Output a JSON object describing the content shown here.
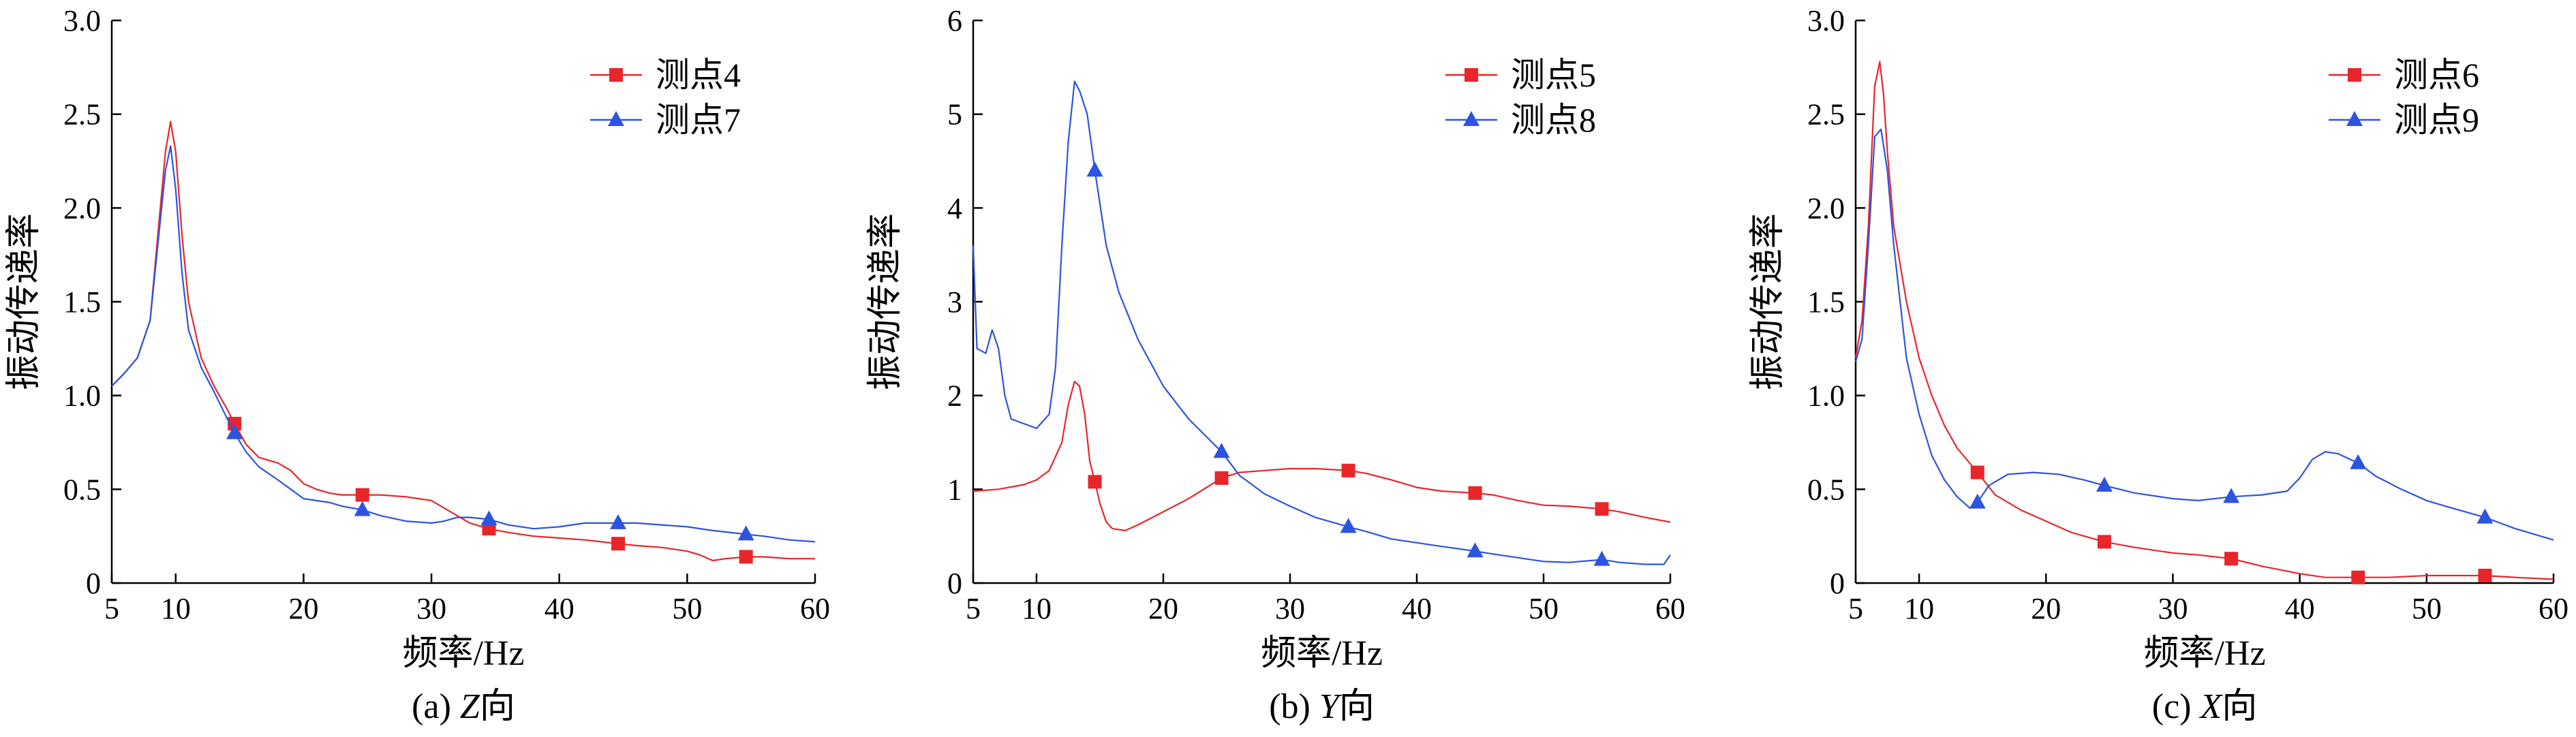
{
  "chart_data": [
    {
      "type": "line",
      "caption": "(a) Z向",
      "caption_prefix": "(a) ",
      "caption_axis": "Z",
      "caption_suffix": "向",
      "xlabel": "频率/Hz",
      "ylabel": "振动传递率",
      "xlim": [
        5,
        60
      ],
      "ylim": [
        0,
        3.0
      ],
      "xticks": [
        5,
        10,
        20,
        30,
        40,
        50,
        60
      ],
      "yticks": [
        0,
        0.5,
        1.0,
        1.5,
        2.0,
        2.5,
        3.0
      ],
      "ytick_labels": [
        "0",
        "0.5",
        "1.0",
        "1.5",
        "2.0",
        "2.5",
        "3.0"
      ],
      "legend": "top-right",
      "series": [
        {
          "name": "测点4",
          "color": "#e8262a",
          "marker": "square",
          "x": [
            5,
            6,
            7,
            8,
            8.6,
            9.2,
            9.6,
            10,
            10.5,
            11,
            12,
            13,
            14,
            14.6,
            15.5,
            16.5,
            18,
            19,
            20,
            21,
            22,
            23,
            24.6,
            26,
            28,
            30,
            31,
            32,
            33,
            34.5,
            36,
            38,
            40,
            42,
            44.6,
            46,
            48,
            50,
            51,
            52,
            53,
            54.6,
            56,
            58,
            60
          ],
          "y": [
            1.05,
            1.12,
            1.2,
            1.4,
            1.85,
            2.3,
            2.46,
            2.3,
            1.85,
            1.5,
            1.2,
            1.05,
            0.93,
            0.85,
            0.74,
            0.67,
            0.64,
            0.6,
            0.53,
            0.5,
            0.48,
            0.47,
            0.47,
            0.47,
            0.46,
            0.44,
            0.4,
            0.36,
            0.32,
            0.29,
            0.27,
            0.25,
            0.24,
            0.23,
            0.21,
            0.2,
            0.19,
            0.17,
            0.15,
            0.12,
            0.13,
            0.14,
            0.14,
            0.13,
            0.13
          ],
          "markers_x": [
            14.6,
            24.6,
            34.5,
            44.6,
            54.6
          ],
          "markers_y": [
            0.85,
            0.47,
            0.29,
            0.21,
            0.14
          ]
        },
        {
          "name": "测点7",
          "color": "#2c54e0",
          "marker": "triangle",
          "x": [
            5,
            6,
            7,
            8,
            8.6,
            9.2,
            9.6,
            10,
            10.5,
            11,
            12,
            13,
            14,
            14.6,
            15.5,
            16.5,
            18,
            19,
            20,
            21,
            22,
            23,
            24.6,
            26,
            28,
            30,
            31,
            32,
            33,
            34.5,
            36,
            38,
            40,
            42,
            44.6,
            46,
            48,
            50,
            52,
            54.6,
            56,
            58,
            60
          ],
          "y": [
            1.05,
            1.12,
            1.2,
            1.4,
            1.8,
            2.2,
            2.33,
            2.1,
            1.65,
            1.35,
            1.15,
            1.02,
            0.88,
            0.8,
            0.7,
            0.62,
            0.55,
            0.5,
            0.45,
            0.44,
            0.43,
            0.41,
            0.39,
            0.36,
            0.33,
            0.32,
            0.33,
            0.35,
            0.35,
            0.34,
            0.31,
            0.29,
            0.3,
            0.32,
            0.32,
            0.32,
            0.31,
            0.3,
            0.28,
            0.26,
            0.25,
            0.23,
            0.22
          ],
          "markers_x": [
            14.6,
            24.6,
            34.5,
            44.6,
            54.6
          ],
          "markers_y": [
            0.8,
            0.39,
            0.34,
            0.32,
            0.26
          ]
        }
      ]
    },
    {
      "type": "line",
      "caption": "(b) Y向",
      "caption_prefix": "(b) ",
      "caption_axis": "Y",
      "caption_suffix": "向",
      "xlabel": "频率/Hz",
      "ylabel": "振动传递率",
      "xlim": [
        5,
        60
      ],
      "ylim": [
        0,
        6
      ],
      "xticks": [
        5,
        10,
        20,
        30,
        40,
        50,
        60
      ],
      "yticks": [
        0,
        1,
        2,
        3,
        4,
        5,
        6
      ],
      "ytick_labels": [
        "0",
        "1",
        "2",
        "3",
        "4",
        "5",
        "6"
      ],
      "legend": "top-right",
      "series": [
        {
          "name": "测点5",
          "color": "#e8262a",
          "marker": "square",
          "x": [
            5,
            7,
            9,
            10,
            11,
            12,
            12.5,
            13,
            13.4,
            13.8,
            14.2,
            14.6,
            15,
            15.5,
            16,
            17,
            18,
            20,
            22,
            24.6,
            26,
            28,
            30,
            32,
            34.6,
            36,
            38,
            40,
            42,
            44.6,
            46,
            48,
            50,
            52,
            54.6,
            56,
            58,
            60
          ],
          "y": [
            0.98,
            1.0,
            1.05,
            1.1,
            1.2,
            1.5,
            1.9,
            2.15,
            2.1,
            1.8,
            1.3,
            1.08,
            0.85,
            0.65,
            0.58,
            0.56,
            0.62,
            0.76,
            0.9,
            1.12,
            1.18,
            1.2,
            1.22,
            1.22,
            1.2,
            1.17,
            1.1,
            1.02,
            0.98,
            0.96,
            0.94,
            0.88,
            0.83,
            0.82,
            0.79,
            0.76,
            0.7,
            0.65
          ],
          "markers_x": [
            14.6,
            24.6,
            34.6,
            44.6,
            54.6
          ],
          "markers_y": [
            1.08,
            1.12,
            1.2,
            0.96,
            0.79
          ]
        },
        {
          "name": "测点8",
          "color": "#2c54e0",
          "marker": "triangle",
          "x": [
            5,
            5.3,
            6,
            6.5,
            7,
            7.5,
            8,
            9,
            10,
            11,
            11.5,
            12,
            12.5,
            13,
            13.4,
            14,
            14.6,
            15.5,
            16.5,
            18,
            20,
            22,
            24.6,
            26,
            28,
            30,
            32,
            34.6,
            36,
            38,
            40,
            42,
            44.6,
            46,
            48,
            50,
            52,
            54.6,
            56,
            58,
            59.5,
            60
          ],
          "y": [
            3.6,
            2.5,
            2.45,
            2.7,
            2.5,
            2.0,
            1.75,
            1.7,
            1.65,
            1.8,
            2.3,
            3.6,
            4.7,
            5.35,
            5.25,
            5.0,
            4.4,
            3.6,
            3.1,
            2.6,
            2.1,
            1.75,
            1.4,
            1.15,
            0.95,
            0.82,
            0.7,
            0.6,
            0.55,
            0.47,
            0.43,
            0.39,
            0.34,
            0.31,
            0.27,
            0.23,
            0.22,
            0.25,
            0.22,
            0.2,
            0.2,
            0.3
          ],
          "markers_x": [
            14.6,
            24.6,
            34.6,
            44.6,
            54.6
          ],
          "markers_y": [
            4.4,
            1.4,
            0.6,
            0.34,
            0.25
          ]
        }
      ]
    },
    {
      "type": "line",
      "caption": "(c) X向",
      "caption_prefix": "(c) ",
      "caption_axis": "X",
      "caption_suffix": "向",
      "xlabel": "频率/Hz",
      "ylabel": "振动传递率",
      "xlim": [
        5,
        60
      ],
      "ylim": [
        0,
        3.0
      ],
      "xticks": [
        5,
        10,
        20,
        30,
        40,
        50,
        60
      ],
      "yticks": [
        0,
        0.5,
        1.0,
        1.5,
        2.0,
        2.5,
        3.0
      ],
      "ytick_labels": [
        "0",
        "0.5",
        "1.0",
        "1.5",
        "2.0",
        "2.5",
        "3.0"
      ],
      "legend": "top-right",
      "series": [
        {
          "name": "测点6",
          "color": "#e8262a",
          "marker": "square",
          "x": [
            5,
            5.5,
            6,
            6.5,
            6.9,
            7.2,
            7.5,
            8,
            9,
            10,
            11,
            12,
            13,
            14.6,
            16,
            18,
            20,
            22,
            24.6,
            27,
            30,
            32,
            34.6,
            37,
            40,
            42,
            44.6,
            47,
            50,
            54.6,
            57,
            60
          ],
          "y": [
            1.2,
            1.4,
            1.9,
            2.65,
            2.78,
            2.6,
            2.3,
            1.9,
            1.5,
            1.2,
            1.0,
            0.84,
            0.72,
            0.59,
            0.47,
            0.39,
            0.33,
            0.27,
            0.22,
            0.19,
            0.16,
            0.15,
            0.13,
            0.09,
            0.05,
            0.03,
            0.03,
            0.03,
            0.04,
            0.04,
            0.03,
            0.02
          ],
          "markers_x": [
            14.6,
            24.6,
            34.6,
            44.6,
            54.6
          ],
          "markers_y": [
            0.59,
            0.22,
            0.13,
            0.03,
            0.04
          ]
        },
        {
          "name": "测点9",
          "color": "#2c54e0",
          "marker": "triangle",
          "x": [
            5,
            5.5,
            6,
            6.5,
            7,
            7.5,
            8,
            9,
            10,
            11,
            12,
            13,
            14,
            14.6,
            15.5,
            17,
            19,
            21,
            23,
            24.6,
            27,
            30,
            32,
            34.6,
            37,
            39,
            40,
            41,
            42,
            43,
            44.6,
            46,
            48,
            50,
            52,
            54.6,
            57,
            60
          ],
          "y": [
            1.18,
            1.3,
            1.8,
            2.38,
            2.42,
            2.2,
            1.8,
            1.2,
            0.9,
            0.68,
            0.55,
            0.46,
            0.4,
            0.43,
            0.52,
            0.58,
            0.59,
            0.58,
            0.55,
            0.52,
            0.48,
            0.45,
            0.44,
            0.46,
            0.47,
            0.49,
            0.56,
            0.66,
            0.7,
            0.69,
            0.64,
            0.57,
            0.5,
            0.44,
            0.4,
            0.35,
            0.29,
            0.23
          ],
          "markers_x": [
            14.6,
            24.6,
            34.6,
            44.6,
            54.6
          ],
          "markers_y": [
            0.43,
            0.52,
            0.46,
            0.64,
            0.35
          ]
        }
      ]
    }
  ]
}
